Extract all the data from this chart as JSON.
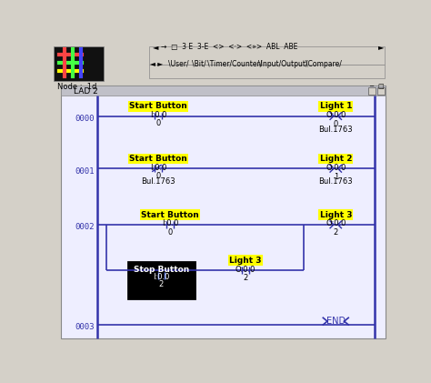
{
  "bg_color": "#d4d0c8",
  "panel_bg": "#ffffff",
  "header_bg": "#c8c8c8",
  "blue": "#3333aa",
  "yellow": "#ffff00",
  "black": "#000000",
  "white": "#ffffff",
  "gray_light": "#e8e8e8",
  "rung_numbers": [
    "0000",
    "0001",
    "0002",
    "0003"
  ],
  "tabs": [
    "User",
    "Bit",
    "Timer/Counter",
    "Input/Output",
    "Compare"
  ]
}
